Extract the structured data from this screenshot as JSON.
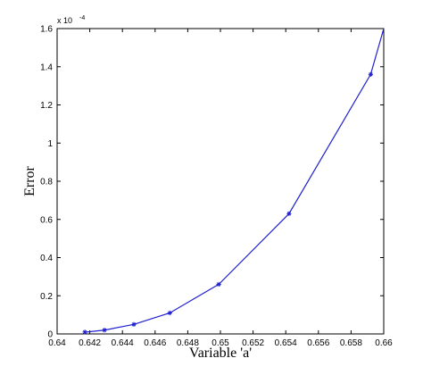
{
  "chart_data": {
    "type": "line",
    "title": "",
    "xlabel": "Variable 'a'",
    "ylabel": "Error",
    "y_scale_label": "x 10",
    "y_scale_exponent": "-4",
    "xlim": [
      0.64,
      0.66
    ],
    "ylim": [
      0,
      1.6
    ],
    "x_ticks": [
      "0.64",
      "0.642",
      "0.644",
      "0.646",
      "0.648",
      "0.65",
      "0.652",
      "0.654",
      "0.656",
      "0.658",
      "0.66"
    ],
    "y_ticks": [
      "0",
      "0.2",
      "0.4",
      "0.6",
      "0.8",
      "1",
      "1.2",
      "1.4",
      "1.6"
    ],
    "grid": false,
    "line_color": "#2020d0",
    "series": [
      {
        "x": [
          0.6417,
          0.6418,
          0.6429,
          0.6447,
          0.6469,
          0.6499,
          0.6542,
          0.6592,
          0.66
        ],
        "y": [
          0.01,
          0.01,
          0.02,
          0.05,
          0.11,
          0.26,
          0.63,
          1.36,
          1.6
        ],
        "markers": [
          true,
          false,
          true,
          true,
          true,
          true,
          true,
          true,
          false
        ]
      }
    ]
  }
}
